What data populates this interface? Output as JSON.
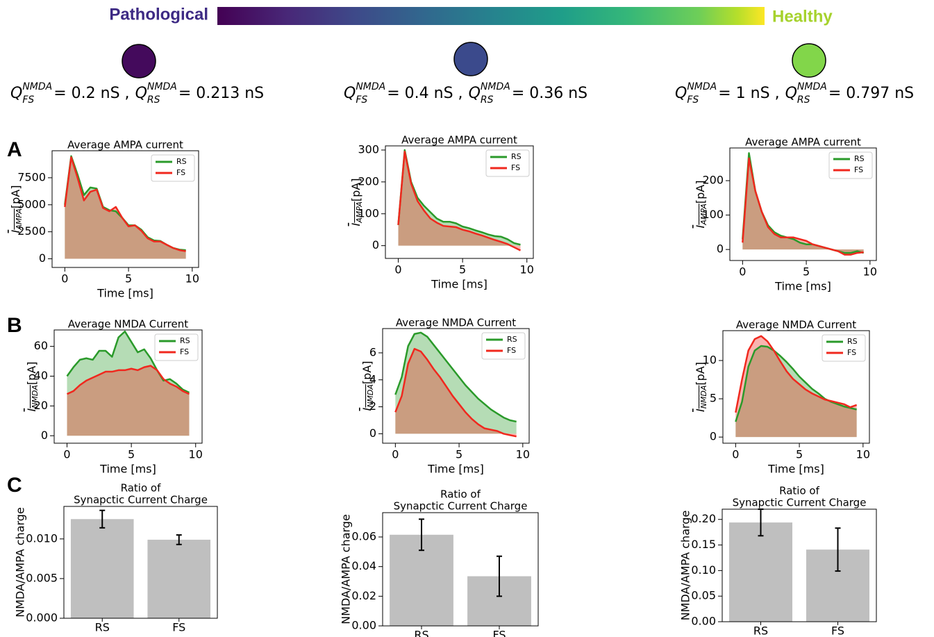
{
  "header": {
    "left_label": "Pathological",
    "right_label": "Healthy",
    "conditions": [
      {
        "color": "#440a5c",
        "q": "Q",
        "sup": "NMDA",
        "fs_sub": "FS",
        "fs_value": "= 0.2 nS ,",
        "rs_sub": "RS",
        "rs_value": "= 0.213 nS"
      },
      {
        "color": "#3b4a8c",
        "q": "Q",
        "sup": "NMDA",
        "fs_sub": "FS",
        "fs_value": "= 0.4 nS ,",
        "rs_sub": "RS",
        "rs_value": "= 0.36 nS"
      },
      {
        "color": "#82d64a",
        "q": "Q",
        "sup": "NMDA",
        "fs_sub": "FS",
        "fs_value": "= 1 nS ,",
        "rs_sub": "RS",
        "rs_value": "= 0.797 nS"
      }
    ]
  },
  "panel_labels": [
    "A",
    "B",
    "C"
  ],
  "chart_data": [
    {
      "type": "line",
      "title": "Average AMPA current",
      "xlabel": "Time [ms]",
      "ylabel": {
        "symbol": "I",
        "sub": "AMPA",
        "unit": "[pA]"
      },
      "x": [
        0,
        0.5,
        1,
        1.5,
        2,
        2.5,
        3,
        3.5,
        4,
        4.5,
        5,
        5.5,
        6,
        6.5,
        7,
        7.5,
        8,
        8.5,
        9,
        9.5
      ],
      "series": [
        {
          "name": "RS",
          "color": "#2a9a2a",
          "values": [
            5000,
            9500,
            7800,
            5900,
            6600,
            6500,
            4800,
            4500,
            4400,
            3800,
            3100,
            3100,
            2700,
            2000,
            1700,
            1650,
            1300,
            1000,
            850,
            800
          ]
        },
        {
          "name": "FS",
          "color": "#f0281e",
          "values": [
            4800,
            9400,
            7500,
            5400,
            6200,
            6400,
            4700,
            4400,
            4800,
            3800,
            3000,
            3100,
            2600,
            1900,
            1600,
            1600,
            1300,
            1000,
            800,
            700
          ]
        }
      ],
      "xlim": [
        -1,
        10.5
      ],
      "ylim": [
        -800,
        10000
      ],
      "xticks": [
        0,
        5,
        10
      ],
      "yticks": [
        0,
        2500,
        5000,
        7500
      ],
      "fill": true,
      "legend": "upper right"
    },
    {
      "type": "line",
      "title": "Average AMPA current",
      "xlabel": "Time [ms]",
      "ylabel": {
        "symbol": "I",
        "sub": "AMPA",
        "unit": "[pA]"
      },
      "x": [
        0,
        0.5,
        1,
        1.5,
        2,
        2.5,
        3,
        3.5,
        4,
        4.5,
        5,
        5.5,
        6,
        6.5,
        7,
        7.5,
        8,
        8.5,
        9,
        9.5
      ],
      "series": [
        {
          "name": "RS",
          "color": "#2a9a2a",
          "values": [
            65,
            300,
            200,
            150,
            125,
            105,
            85,
            75,
            75,
            70,
            60,
            55,
            48,
            42,
            35,
            30,
            28,
            20,
            8,
            3
          ]
        },
        {
          "name": "FS",
          "color": "#f0281e",
          "values": [
            65,
            295,
            195,
            140,
            110,
            85,
            72,
            62,
            60,
            58,
            50,
            45,
            38,
            32,
            25,
            18,
            12,
            5,
            -5,
            -15
          ]
        }
      ],
      "xlim": [
        -1,
        10.5
      ],
      "ylim": [
        -40,
        313
      ],
      "xticks": [
        0,
        5,
        10
      ],
      "yticks": [
        0,
        100,
        200,
        300
      ],
      "fill": true,
      "legend": "upper right"
    },
    {
      "type": "line",
      "title": "Average AMPA current",
      "xlabel": "Time [ms]",
      "ylabel": {
        "symbol": "I",
        "sub": "AMPA",
        "unit": "[pA]"
      },
      "x": [
        0,
        0.5,
        1,
        1.5,
        2,
        2.5,
        3,
        3.5,
        4,
        4.5,
        5,
        5.5,
        6,
        6.5,
        7,
        7.5,
        8,
        8.5,
        9,
        9.5
      ],
      "series": [
        {
          "name": "RS",
          "color": "#2a9a2a",
          "values": [
            30,
            280,
            170,
            110,
            70,
            50,
            40,
            35,
            30,
            20,
            15,
            15,
            10,
            5,
            0,
            -5,
            -10,
            -10,
            -5,
            -10
          ]
        },
        {
          "name": "FS",
          "color": "#f0281e",
          "values": [
            20,
            265,
            170,
            110,
            65,
            45,
            35,
            35,
            35,
            30,
            25,
            15,
            10,
            5,
            0,
            -5,
            -15,
            -15,
            -10,
            -8
          ]
        }
      ],
      "xlim": [
        -1,
        10.5
      ],
      "ylim": [
        -32,
        295
      ],
      "xticks": [
        0,
        5,
        10
      ],
      "yticks": [
        0,
        100,
        200
      ],
      "fill": true,
      "legend": "upper right"
    },
    {
      "type": "line",
      "title": "Average NMDA Current",
      "xlabel": "Time [ms]",
      "ylabel": {
        "symbol": "I",
        "sub": "NMDA",
        "unit": "[pA]"
      },
      "x": [
        0,
        0.5,
        1,
        1.5,
        2,
        2.5,
        3,
        3.5,
        4,
        4.5,
        5,
        5.5,
        6,
        6.5,
        7,
        7.5,
        8,
        8.5,
        9,
        9.5
      ],
      "series": [
        {
          "name": "RS",
          "color": "#2a9a2a",
          "values": [
            40,
            46,
            51,
            52,
            51,
            57,
            57,
            53,
            66,
            70,
            63,
            56,
            58,
            52,
            44,
            37,
            38,
            35,
            31,
            29
          ]
        },
        {
          "name": "FS",
          "color": "#f0281e",
          "values": [
            28,
            30,
            34,
            37,
            39,
            41,
            43,
            43,
            44,
            44,
            45,
            44,
            46,
            47,
            44,
            38,
            35,
            33,
            30,
            28
          ]
        }
      ],
      "xlim": [
        -1,
        10.5
      ],
      "ylim": [
        -5,
        71
      ],
      "xticks": [
        0,
        5,
        10
      ],
      "yticks": [
        0,
        20,
        40,
        60
      ],
      "fill": true,
      "legend": "upper right"
    },
    {
      "type": "line",
      "title": "Average NMDA Current",
      "xlabel": "Time [ms]",
      "ylabel": {
        "symbol": "I",
        "sub": "NMDA",
        "unit": "[pA]"
      },
      "x": [
        0,
        0.5,
        1,
        1.5,
        2,
        2.5,
        3,
        3.5,
        4,
        4.5,
        5,
        5.5,
        6,
        6.5,
        7,
        7.5,
        8,
        8.5,
        9,
        9.5
      ],
      "series": [
        {
          "name": "RS",
          "color": "#2a9a2a",
          "values": [
            2.9,
            4.2,
            6.5,
            7.4,
            7.5,
            7.2,
            6.6,
            6.0,
            5.4,
            4.8,
            4.2,
            3.6,
            3.1,
            2.6,
            2.2,
            1.8,
            1.5,
            1.2,
            1.0,
            0.9
          ]
        },
        {
          "name": "FS",
          "color": "#f0281e",
          "values": [
            1.6,
            2.8,
            5.2,
            6.3,
            6.1,
            5.5,
            4.8,
            4.2,
            3.5,
            2.8,
            2.2,
            1.6,
            1.1,
            0.7,
            0.4,
            0.3,
            0.2,
            0.0,
            -0.1,
            -0.2
          ]
        }
      ],
      "xlim": [
        -1,
        10.5
      ],
      "ylim": [
        -0.7,
        7.8
      ],
      "xticks": [
        0,
        5,
        10
      ],
      "yticks": [
        0,
        2,
        4,
        6
      ],
      "fill": true,
      "legend": "upper right"
    },
    {
      "type": "line",
      "title": "Average NMDA Current",
      "xlabel": "Time [ms]",
      "ylabel": {
        "symbol": "I",
        "sub": "NMDA",
        "unit": "[pA]"
      },
      "x": [
        0,
        0.5,
        1,
        1.5,
        2,
        2.5,
        3,
        3.5,
        4,
        4.5,
        5,
        5.5,
        6,
        6.5,
        7,
        7.5,
        8,
        8.5,
        9,
        9.5
      ],
      "series": [
        {
          "name": "RS",
          "color": "#2a9a2a",
          "values": [
            2.0,
            4.6,
            9.2,
            11.3,
            11.9,
            11.8,
            11.3,
            10.6,
            9.8,
            8.9,
            7.9,
            7.1,
            6.3,
            5.7,
            5.0,
            4.6,
            4.3,
            4.0,
            3.8,
            3.6
          ]
        },
        {
          "name": "FS",
          "color": "#f0281e",
          "values": [
            3.2,
            7.5,
            11.3,
            12.8,
            13.2,
            12.5,
            11.3,
            9.9,
            8.6,
            7.6,
            6.9,
            6.2,
            5.7,
            5.3,
            4.9,
            4.7,
            4.5,
            4.3,
            3.9,
            4.2
          ]
        }
      ],
      "xlim": [
        -1,
        10.5
      ],
      "ylim": [
        -0.8,
        13.9
      ],
      "xticks": [
        0,
        5,
        10
      ],
      "yticks": [
        0,
        5,
        10
      ],
      "fill": true,
      "legend": "upper right"
    },
    {
      "type": "bar",
      "title": [
        "Ratio of",
        "Synapctic Current Charge"
      ],
      "ylabel": "NMDA/AMPA charge",
      "categories": [
        "RS",
        "FS"
      ],
      "values": [
        0.0125,
        0.0099
      ],
      "errors": [
        0.0011,
        0.0006
      ],
      "color": "#bfbfbf",
      "ylim": [
        0,
        0.0141
      ],
      "yticks": [
        {
          "value": 0,
          "label": "0.000"
        },
        {
          "value": 0.005,
          "label": "0.005"
        },
        {
          "value": 0.01,
          "label": "0.010"
        }
      ]
    },
    {
      "type": "bar",
      "title": [
        "Ratio of",
        "Synapctic Current Charge"
      ],
      "ylabel": "NMDA/AMPA charge",
      "categories": [
        "RS",
        "FS"
      ],
      "values": [
        0.0615,
        0.0335
      ],
      "errors": [
        0.0105,
        0.0135
      ],
      "color": "#bfbfbf",
      "ylim": [
        0,
        0.0764
      ],
      "yticks": [
        {
          "value": 0,
          "label": "0.00"
        },
        {
          "value": 0.02,
          "label": "0.02"
        },
        {
          "value": 0.04,
          "label": "0.04"
        },
        {
          "value": 0.06,
          "label": "0.06"
        }
      ]
    },
    {
      "type": "bar",
      "title": [
        "Ratio of",
        "Synapctic Current Charge"
      ],
      "ylabel": "NMDA/AMPA charge",
      "categories": [
        "RS",
        "FS"
      ],
      "values": [
        0.194,
        0.141
      ],
      "errors": [
        0.026,
        0.042
      ],
      "color": "#bfbfbf",
      "ylim": [
        0,
        0.22
      ],
      "yticks": [
        {
          "value": 0,
          "label": "0.00"
        },
        {
          "value": 0.05,
          "label": "0.05"
        },
        {
          "value": 0.1,
          "label": "0.10"
        },
        {
          "value": 0.15,
          "label": "0.15"
        },
        {
          "value": 0.2,
          "label": "0.20"
        }
      ]
    }
  ]
}
